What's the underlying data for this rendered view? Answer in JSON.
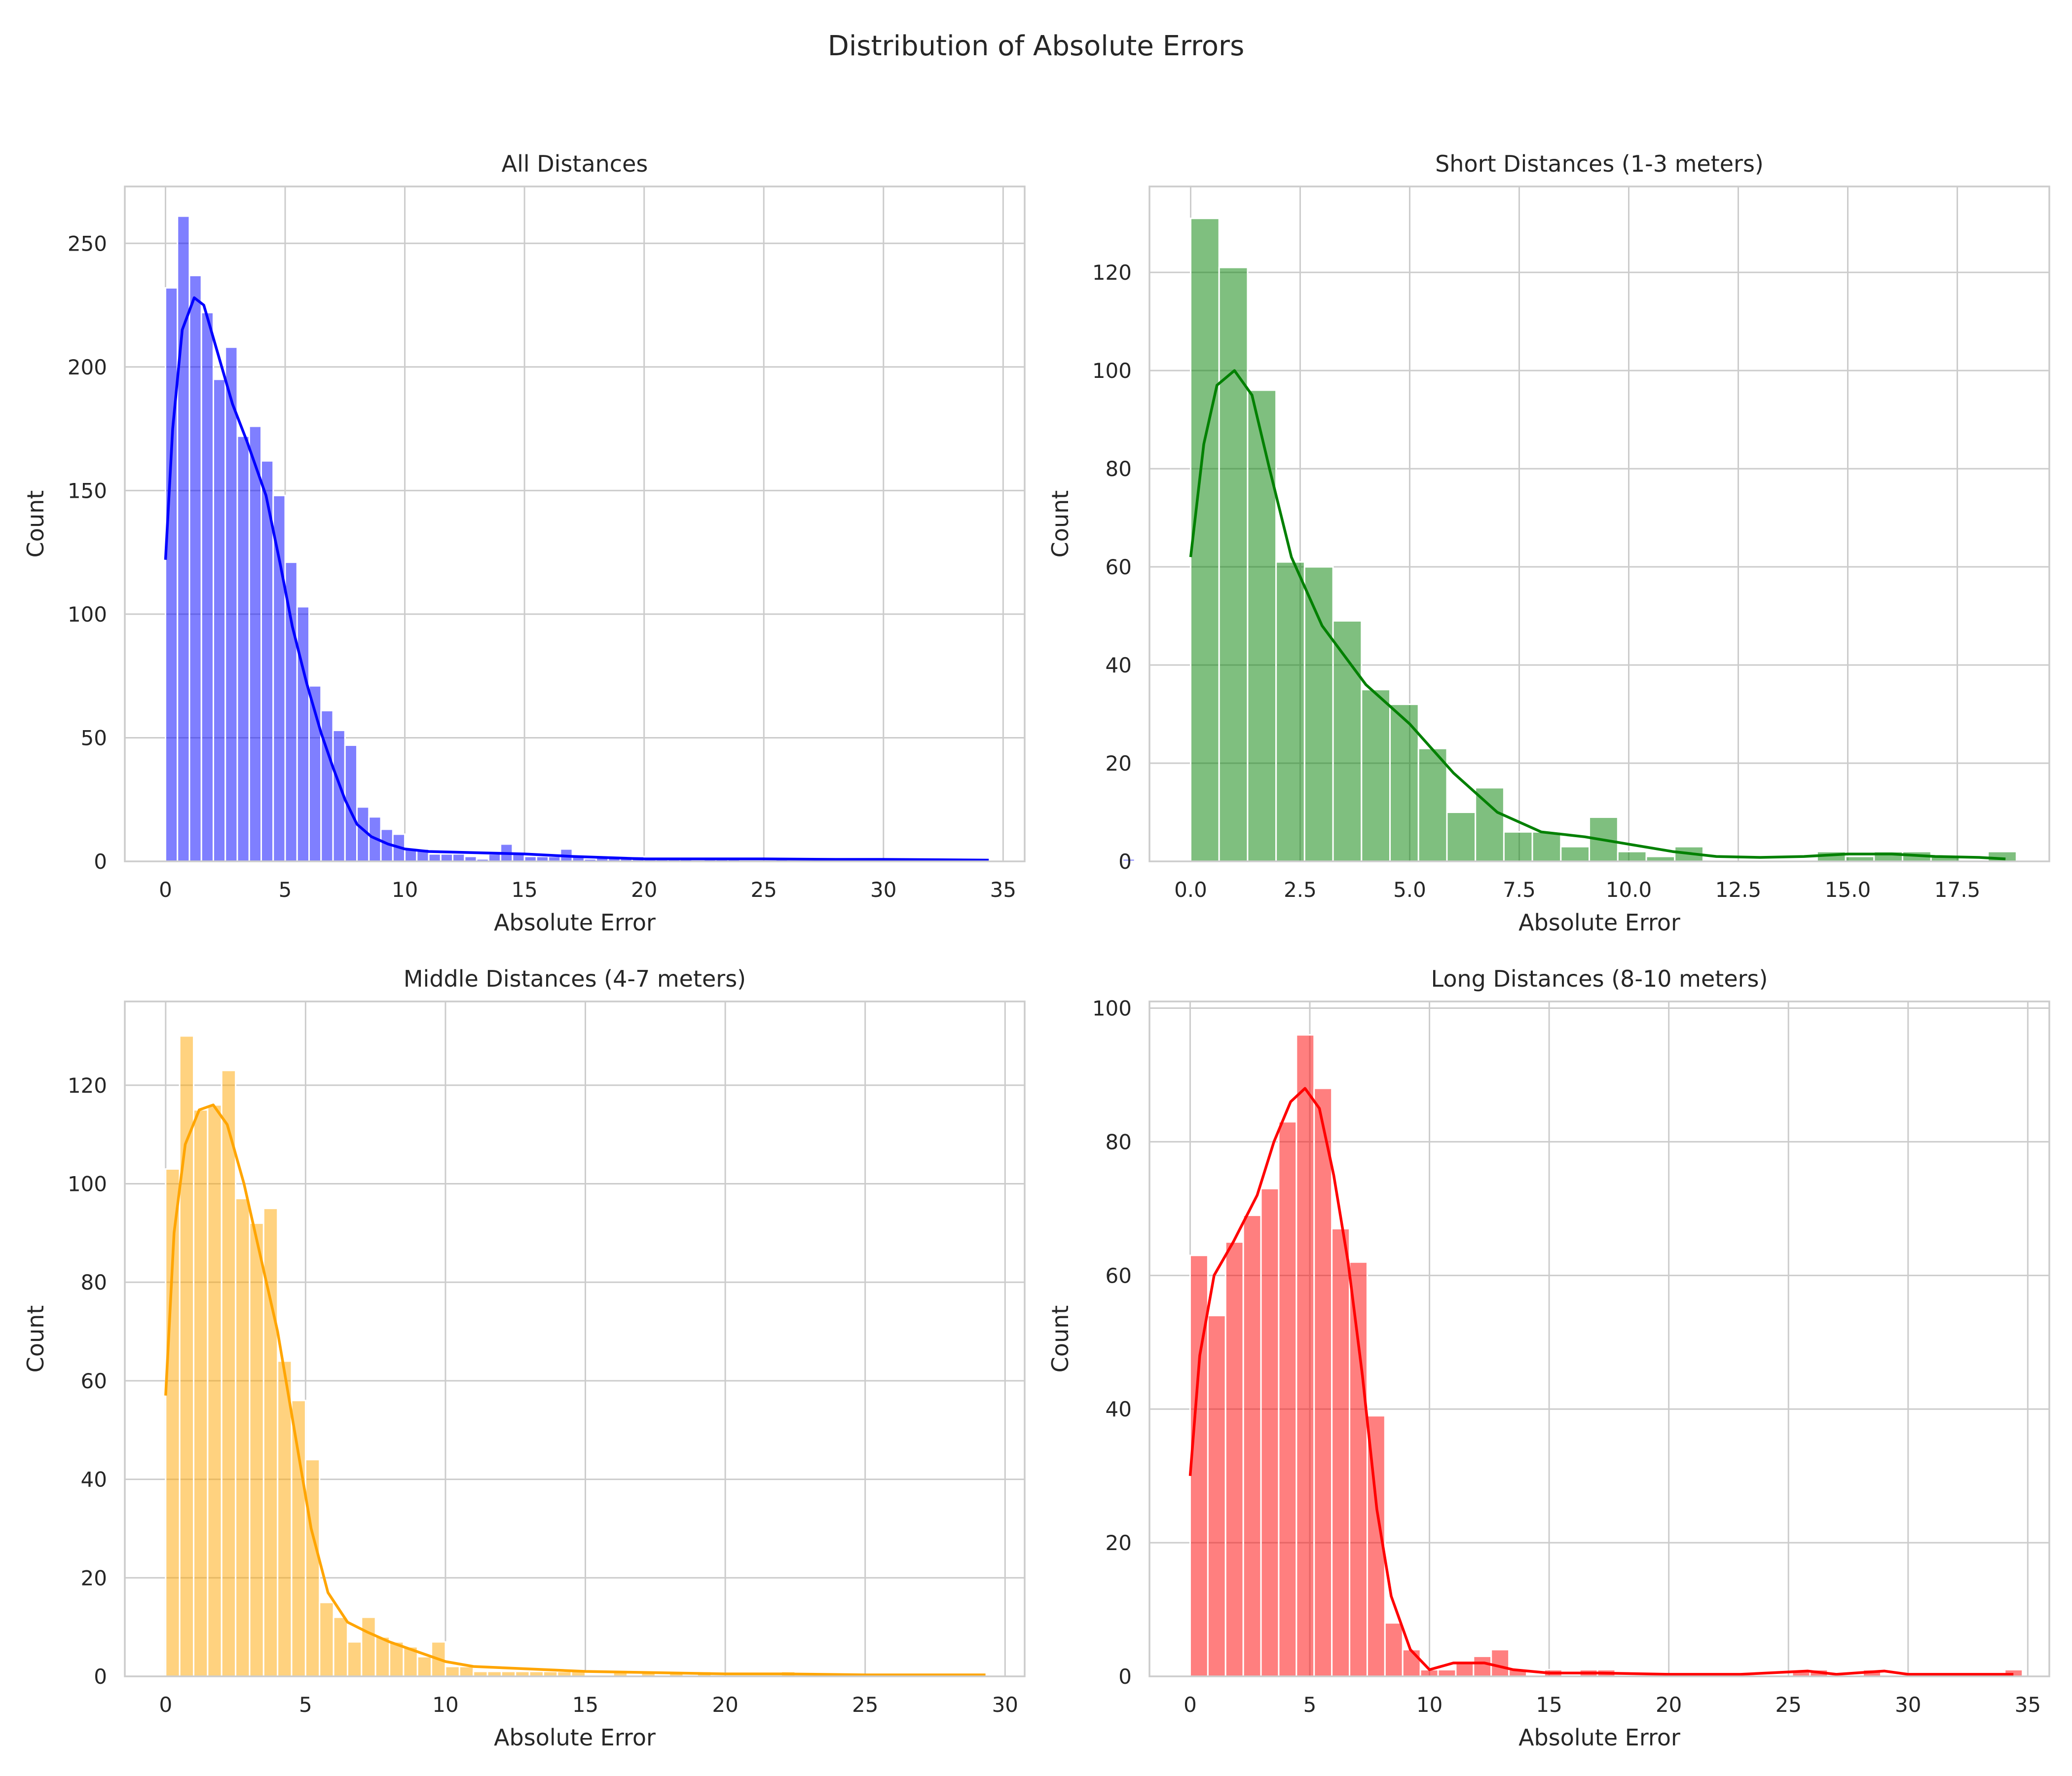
{
  "figure": {
    "suptitle": "Distribution of Absolute Errors"
  },
  "chart_data": [
    {
      "type": "bar",
      "subtype": "histogram-with-kde",
      "title": "All Distances",
      "xlabel": "Absolute Error",
      "ylabel": "Count",
      "color": "#0000ff",
      "xlim": [
        -1.7,
        35.9
      ],
      "ylim": [
        0,
        273
      ],
      "xticks": [
        0,
        5,
        10,
        15,
        20,
        25,
        30,
        35
      ],
      "xtick_labels": [
        "0",
        "5",
        "10",
        "15",
        "20",
        "25",
        "30",
        "35"
      ],
      "yticks": [
        0,
        50,
        100,
        150,
        200,
        250
      ],
      "ytick_labels": [
        "0",
        "50",
        "100",
        "150",
        "200",
        "250"
      ],
      "grid": true,
      "bin_start": 0,
      "bin_width": 0.5,
      "counts": [
        232,
        261,
        237,
        222,
        195,
        208,
        172,
        176,
        162,
        148,
        121,
        103,
        71,
        61,
        53,
        47,
        22,
        18,
        13,
        11,
        5,
        5,
        3,
        3,
        3,
        2,
        1,
        3,
        7,
        3,
        2,
        2,
        2,
        5,
        2,
        1,
        2,
        2,
        2,
        2,
        1,
        1,
        1,
        1,
        0,
        1,
        1,
        1,
        0,
        0,
        0,
        1,
        0,
        0,
        0,
        0,
        0,
        0,
        0,
        0,
        0,
        1,
        0,
        0,
        0,
        0,
        0,
        0,
        0,
        0,
        0,
        0,
        0,
        0,
        0,
        0,
        0,
        0,
        0,
        0,
        1,
        0,
        0,
        0,
        0,
        0,
        0,
        0,
        0,
        0,
        0,
        0,
        0,
        0,
        0,
        0,
        0,
        0,
        0,
        0,
        0,
        0,
        0,
        0,
        0,
        0,
        0,
        0,
        0,
        0,
        0,
        0,
        0,
        0,
        0,
        0,
        0,
        0,
        0,
        0,
        0,
        0,
        0,
        0,
        0,
        0,
        0,
        0,
        0,
        0,
        0,
        0,
        0,
        0,
        0,
        0,
        0,
        0,
        0,
        0,
        0,
        0,
        0,
        0,
        0,
        0,
        0,
        0,
        0,
        0,
        0,
        0,
        0,
        0,
        0,
        0,
        0,
        0,
        0,
        0,
        0,
        0,
        0,
        0,
        0,
        0,
        0,
        0,
        0,
        0
      ],
      "kde": {
        "x": [
          0,
          0.3,
          0.7,
          1.2,
          1.6,
          2.2,
          2.8,
          3.4,
          4.2,
          4.8,
          5.3,
          5.9,
          6.5,
          7.0,
          7.5,
          8.0,
          8.6,
          9.3,
          10.0,
          11.0,
          13.0,
          15.0,
          17.0,
          20.0,
          25.0,
          28.0,
          30.0,
          34.4
        ],
        "y": [
          122,
          175,
          215,
          228,
          225,
          205,
          185,
          170,
          148,
          120,
          95,
          72,
          52,
          38,
          25,
          15,
          10,
          7,
          5,
          4,
          3.5,
          3,
          2,
          1,
          1,
          0.8,
          0.8,
          0.5
        ]
      }
    },
    {
      "type": "bar",
      "subtype": "histogram-with-kde",
      "title": "Short Distances (1-3 meters)",
      "xlabel": "Absolute Error",
      "ylabel": "Count",
      "color": "#008000",
      "xlim": [
        -0.94,
        19.6
      ],
      "ylim": [
        0,
        137.5
      ],
      "xticks": [
        0,
        2.5,
        5,
        7.5,
        10,
        12.5,
        15,
        17.5
      ],
      "xtick_labels": [
        "0.0",
        "2.5",
        "5.0",
        "7.5",
        "10.0",
        "12.5",
        "15.0",
        "17.5"
      ],
      "yticks": [
        0,
        20,
        40,
        60,
        80,
        100,
        120
      ],
      "ytick_labels": [
        "0",
        "20",
        "40",
        "60",
        "80",
        "100",
        "120"
      ],
      "grid": true,
      "bin_start": 0,
      "bin_width": 0.65,
      "counts": [
        131,
        121,
        96,
        61,
        60,
        49,
        35,
        32,
        23,
        10,
        15,
        6,
        6,
        3,
        9,
        2,
        1,
        3,
        0,
        0,
        0,
        0,
        2,
        1,
        2,
        2,
        1,
        0,
        2
      ],
      "kde": {
        "x": [
          0,
          0.3,
          0.6,
          1.0,
          1.4,
          1.8,
          2.3,
          3.0,
          4.0,
          5.0,
          6.0,
          7.0,
          8.0,
          9.0,
          10.0,
          11.0,
          12.0,
          13.0,
          14.0,
          15.0,
          16.0,
          17.0,
          18.0,
          18.6
        ],
        "y": [
          62,
          85,
          97,
          100,
          95,
          80,
          62,
          48,
          36,
          28,
          18,
          10,
          6,
          5,
          3.5,
          2,
          1,
          0.8,
          1,
          1.5,
          1.5,
          1,
          0.8,
          0.5
        ]
      }
    },
    {
      "type": "bar",
      "subtype": "histogram-with-kde",
      "title": "Middle Distances (4-7 meters)",
      "xlabel": "Absolute Error",
      "ylabel": "Count",
      "color": "#ffa500",
      "xlim": [
        -1.46,
        30.7
      ],
      "ylim": [
        0,
        137
      ],
      "xticks": [
        0,
        5,
        10,
        15,
        20,
        25,
        30
      ],
      "xtick_labels": [
        "0",
        "5",
        "10",
        "15",
        "20",
        "25",
        "30"
      ],
      "yticks": [
        0,
        20,
        40,
        60,
        80,
        100,
        120
      ],
      "ytick_labels": [
        "0",
        "20",
        "40",
        "60",
        "80",
        "100",
        "120"
      ],
      "grid": true,
      "bin_start": 0,
      "bin_width": 0.5,
      "counts": [
        103,
        130,
        115,
        116,
        123,
        97,
        92,
        95,
        64,
        56,
        44,
        15,
        12,
        7,
        12,
        8,
        7,
        6,
        4,
        7,
        2,
        2,
        1,
        1,
        1,
        1,
        1,
        1,
        1,
        1,
        0,
        0,
        1,
        0,
        1,
        0,
        1,
        0,
        1,
        0,
        0,
        0,
        0,
        0,
        1,
        0,
        0,
        0,
        0,
        0,
        0,
        0,
        0,
        0,
        0,
        0,
        0,
        0,
        0,
        0,
        0,
        0,
        0,
        0,
        0,
        0,
        0,
        0,
        0,
        0,
        0,
        0,
        0,
        0,
        0,
        0,
        0,
        0,
        0,
        0,
        0,
        0,
        0,
        0,
        0,
        0,
        0,
        0,
        0,
        0,
        0,
        0,
        0,
        0,
        0,
        0,
        0,
        0,
        0,
        0,
        0,
        0,
        0,
        0,
        0,
        0,
        0,
        0,
        0,
        0,
        0,
        0,
        0,
        0,
        0,
        0,
        0,
        0,
        0,
        0,
        0,
        0,
        0,
        0,
        0,
        0,
        0,
        0,
        0,
        0,
        0,
        0,
        0,
        0,
        0,
        0,
        0,
        0,
        0,
        0,
        0,
        0,
        0,
        0,
        0,
        0,
        0,
        0,
        0,
        0
      ],
      "kde": {
        "x": [
          0,
          0.3,
          0.7,
          1.2,
          1.7,
          2.2,
          2.8,
          3.4,
          4.0,
          4.6,
          5.2,
          5.8,
          6.5,
          7.2,
          8.0,
          9.0,
          10.0,
          11.0,
          13.0,
          15.0,
          17.0,
          20.0,
          22.0,
          25.0,
          27.5,
          29.3
        ],
        "y": [
          57,
          90,
          108,
          115,
          116,
          112,
          100,
          85,
          70,
          50,
          30,
          17,
          11,
          9,
          7,
          5,
          3,
          2,
          1.5,
          1,
          0.8,
          0.5,
          0.5,
          0.3,
          0.3,
          0.3
        ]
      }
    },
    {
      "type": "bar",
      "subtype": "histogram-with-kde",
      "title": "Long Distances (8-10 meters)",
      "xlabel": "Absolute Error",
      "ylabel": "Count",
      "color": "#ff0000",
      "xlim": [
        -1.7,
        35.9
      ],
      "ylim": [
        0,
        101
      ],
      "xticks": [
        0,
        5,
        10,
        15,
        20,
        25,
        30,
        35
      ],
      "xtick_labels": [
        "0",
        "5",
        "10",
        "15",
        "20",
        "25",
        "30",
        "35"
      ],
      "yticks": [
        0,
        20,
        40,
        60,
        80,
        100
      ],
      "ytick_labels": [
        "0",
        "20",
        "40",
        "60",
        "80",
        "100"
      ],
      "grid": true,
      "bin_start": 0,
      "bin_width": 0.74,
      "counts": [
        63,
        54,
        65,
        69,
        73,
        83,
        96,
        88,
        67,
        62,
        39,
        8,
        4,
        1,
        1,
        2,
        3,
        4,
        1,
        0,
        1,
        0,
        1,
        1,
        0,
        0,
        0,
        0,
        0,
        0,
        0,
        0,
        0,
        0,
        1,
        1,
        0,
        0,
        1,
        0,
        0,
        0,
        0,
        0,
        0,
        0,
        1
      ],
      "kde": {
        "x": [
          0,
          0.4,
          1.0,
          1.8,
          2.8,
          3.5,
          4.2,
          4.8,
          5.4,
          6.0,
          6.6,
          7.2,
          7.8,
          8.4,
          9.2,
          10.0,
          11.0,
          12.3,
          13.5,
          15.0,
          17.0,
          20.0,
          23.0,
          25.8,
          27.0,
          29.0,
          30.0,
          33.0,
          34.4
        ],
        "y": [
          30,
          48,
          60,
          65,
          72,
          80,
          86,
          88,
          85,
          75,
          62,
          45,
          25,
          12,
          4,
          1,
          2,
          2,
          1,
          0.5,
          0.5,
          0.3,
          0.3,
          0.8,
          0.3,
          0.8,
          0.3,
          0.3,
          0.3
        ]
      }
    }
  ]
}
